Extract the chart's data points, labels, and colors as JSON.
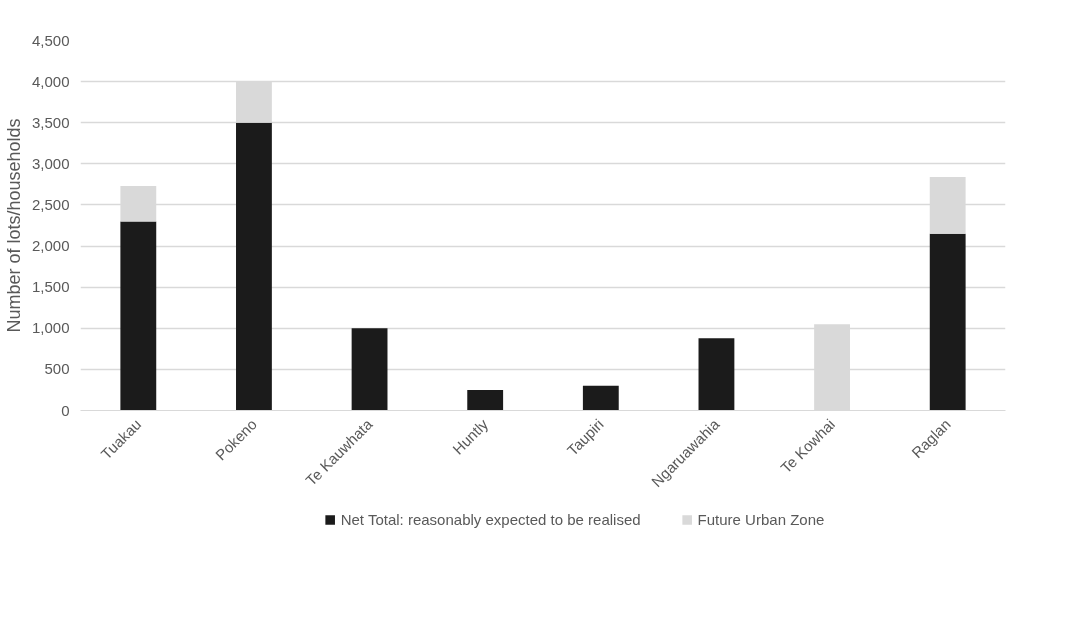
{
  "chart_data": {
    "type": "bar",
    "stacked": true,
    "ylabel": "Number of lots/households",
    "categories": [
      "Tuakau",
      "Pokeno",
      "Te Kauwhata",
      "Huntly",
      "Taupiri",
      "Ngaruawahia",
      "Te Kowhai",
      "Raglan"
    ],
    "series": [
      {
        "name": "Net Total: reasonably expected to be realised",
        "color": "#1b1b1b",
        "values": [
          2300,
          3500,
          1000,
          250,
          300,
          880,
          0,
          2150
        ]
      },
      {
        "name": "Future Urban Zone",
        "color": "#d9d9d9",
        "values": [
          430,
          500,
          0,
          0,
          0,
          0,
          1050,
          690
        ]
      }
    ],
    "ylim": [
      0,
      4500
    ],
    "yticks": [
      {
        "value": 0,
        "label": "0"
      },
      {
        "value": 500,
        "label": "500"
      },
      {
        "value": 1000,
        "label": "1,000"
      },
      {
        "value": 1500,
        "label": "1,500"
      },
      {
        "value": 2000,
        "label": "2,000"
      },
      {
        "value": 2500,
        "label": "2,500"
      },
      {
        "value": 3000,
        "label": "3,000"
      },
      {
        "value": 3500,
        "label": "3,500"
      },
      {
        "value": 4000,
        "label": "4,000"
      },
      {
        "value": 4500,
        "label": "4,500"
      }
    ],
    "grid": "y",
    "legend": "bottom"
  }
}
